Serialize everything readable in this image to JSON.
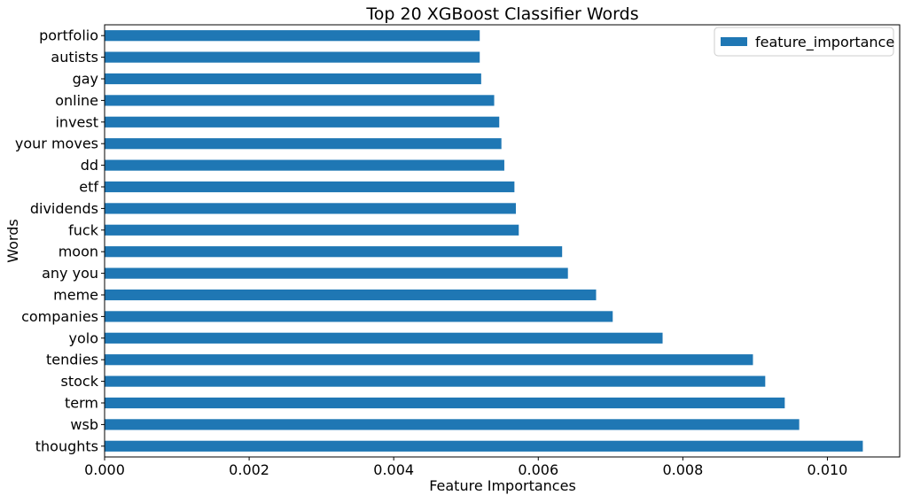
{
  "chart_data": {
    "type": "bar",
    "orientation": "horizontal",
    "title": "Top 20 XGBoost Classifier Words",
    "xlabel": "Feature Importances",
    "ylabel": "Words",
    "xlim": [
      0,
      0.011
    ],
    "xticks": [
      0.0,
      0.002,
      0.004,
      0.006,
      0.008,
      0.01
    ],
    "xtick_labels": [
      "0.000",
      "0.002",
      "0.004",
      "0.006",
      "0.008",
      "0.010"
    ],
    "grid": false,
    "legend_position": "top-right",
    "categories": [
      "thoughts",
      "wsb",
      "term",
      "stock",
      "tendies",
      "yolo",
      "companies",
      "meme",
      "any you",
      "moon",
      "fuck",
      "dividends",
      "etf",
      "dd",
      "your moves",
      "invest",
      "online",
      "gay",
      "autists",
      "portfolio"
    ],
    "series": [
      {
        "name": "feature_importance",
        "color": "#1f77b4",
        "values": [
          0.01049,
          0.00961,
          0.00941,
          0.00914,
          0.00897,
          0.00772,
          0.00703,
          0.0068,
          0.00641,
          0.00633,
          0.00573,
          0.00569,
          0.00567,
          0.00553,
          0.00549,
          0.00546,
          0.00539,
          0.00521,
          0.00519,
          0.00519
        ]
      }
    ]
  }
}
